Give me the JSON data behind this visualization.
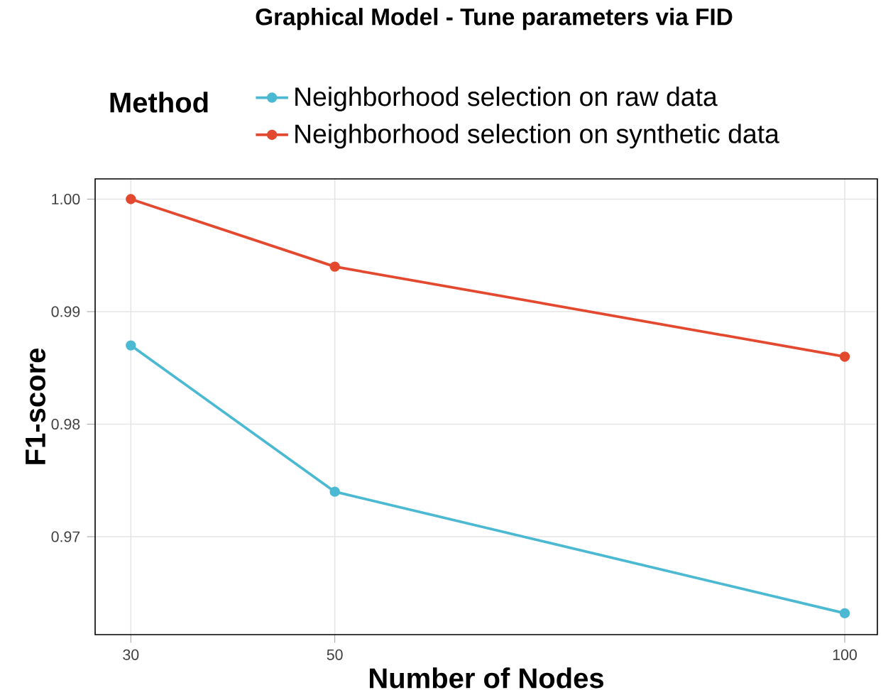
{
  "chart_data": {
    "type": "line",
    "title": "Graphical Model - Tune parameters via FID",
    "legend_title": "Method",
    "xlabel": "Number of Nodes",
    "ylabel": "F1-score",
    "x": [
      30,
      50,
      100
    ],
    "series": [
      {
        "name": "Neighborhood selection on raw data",
        "color": "#4cb9d3",
        "values": [
          0.987,
          0.974,
          0.9632
        ]
      },
      {
        "name": "Neighborhood selection on synthetic data",
        "color": "#e3492f",
        "values": [
          1.0,
          0.994,
          0.986
        ]
      }
    ],
    "xlim": [
      26.5,
      103.2
    ],
    "ylim": [
      0.9613,
      1.0018
    ],
    "xticks": [
      30,
      50,
      100
    ],
    "yticks": [
      0.97,
      0.98,
      0.99,
      {
        "value": 1.0,
        "label": "1.00"
      }
    ],
    "grid": true,
    "legend": "top",
    "marker": "circle",
    "line_style": "solid"
  }
}
